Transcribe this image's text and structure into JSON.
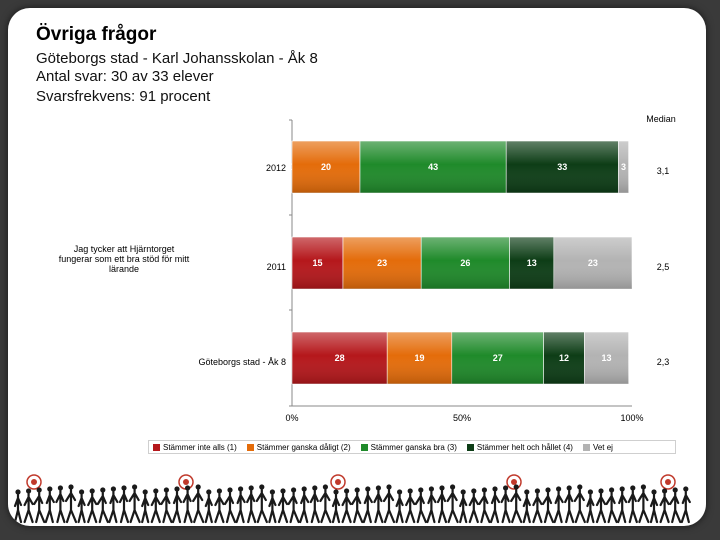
{
  "header": {
    "title": "Övriga frågor",
    "line1": "Göteborgs stad - Karl Johansskolan - Åk 8",
    "line2": "Antal svar: 30 av 33 elever",
    "line3": "Svarsfrekvens: 91 procent"
  },
  "question": "Jag tycker att Hjärntorget fungerar som ett bra stöd för mitt lärande",
  "median_header": "Median",
  "chart_data": {
    "type": "bar",
    "orientation": "horizontal-stacked-percent",
    "categories": [
      "2012",
      "2011",
      "Göteborgs stad - Åk 8"
    ],
    "series": [
      {
        "name": "Stämmer inte alls (1)",
        "color": "#b5171b",
        "values": [
          0,
          15,
          28
        ]
      },
      {
        "name": "Stämmer ganska dåligt (2)",
        "color": "#e46c0a",
        "values": [
          20,
          23,
          19
        ]
      },
      {
        "name": "Stämmer ganska bra (3)",
        "color": "#1f8a2a",
        "values": [
          43,
          26,
          27
        ]
      },
      {
        "name": "Stämmer helt och hållet (4)",
        "color": "#0d3d16",
        "values": [
          33,
          13,
          12
        ]
      },
      {
        "name": "Vet ej",
        "color": "#b3b3b3",
        "values": [
          3,
          23,
          13
        ]
      }
    ],
    "data_labels": [
      [
        "0",
        "20",
        "43",
        "33",
        "3"
      ],
      [
        "15",
        "23",
        "26",
        "13",
        "23"
      ],
      [
        "28",
        "19",
        "27",
        "12",
        "13"
      ]
    ],
    "medians": [
      "3,1",
      "2,5",
      "2,3"
    ],
    "x_ticks": [
      "0%",
      "50%",
      "100%"
    ],
    "xlim": [
      0,
      100
    ],
    "legend_position": "bottom"
  },
  "colors": {
    "background": "#3a3a3a",
    "card": "#ffffff"
  }
}
